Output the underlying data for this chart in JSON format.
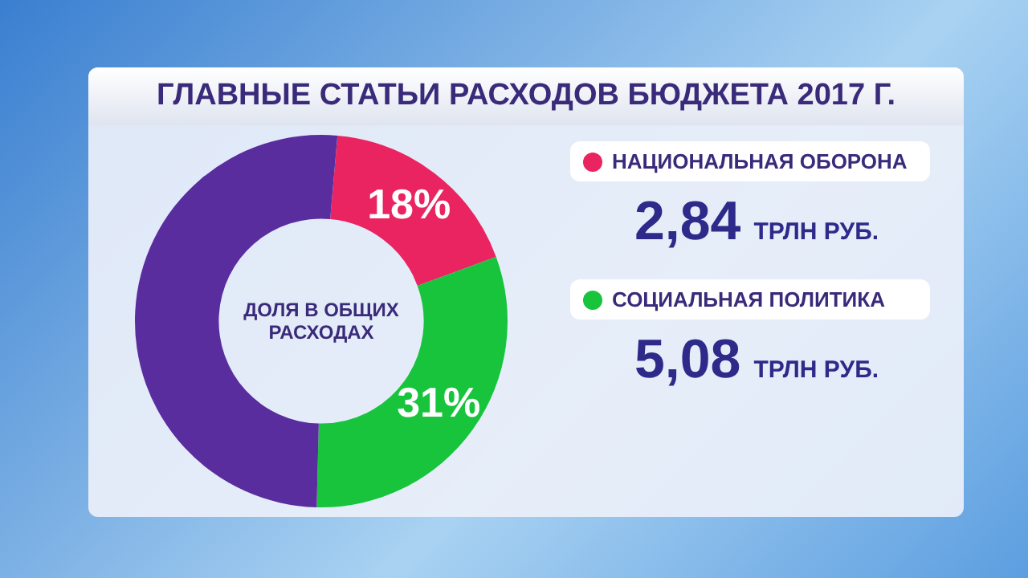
{
  "chart_data": {
    "type": "donut",
    "title": "ГЛАВНЫЕ СТАТЬИ РАСХОДОВ БЮДЖЕТА 2017 Г.",
    "categories": [
      "НАЦИОНАЛЬНАЯ ОБОРОНА",
      "СОЦИАЛЬНАЯ ПОЛИТИКА",
      null
    ],
    "values": [
      18,
      31,
      51
    ],
    "colors": [
      "#ea2460",
      "#17c43c",
      "#5a2d9e"
    ],
    "value_labels": [
      "18%",
      "31%",
      null
    ],
    "legend": "right",
    "annotations": [
      "ДОЛЯ В ОБЩИХ РАСХОДАХ",
      "2,84 ТРЛН РУБ.",
      "5,08 ТРЛН РУБ."
    ]
  }
}
